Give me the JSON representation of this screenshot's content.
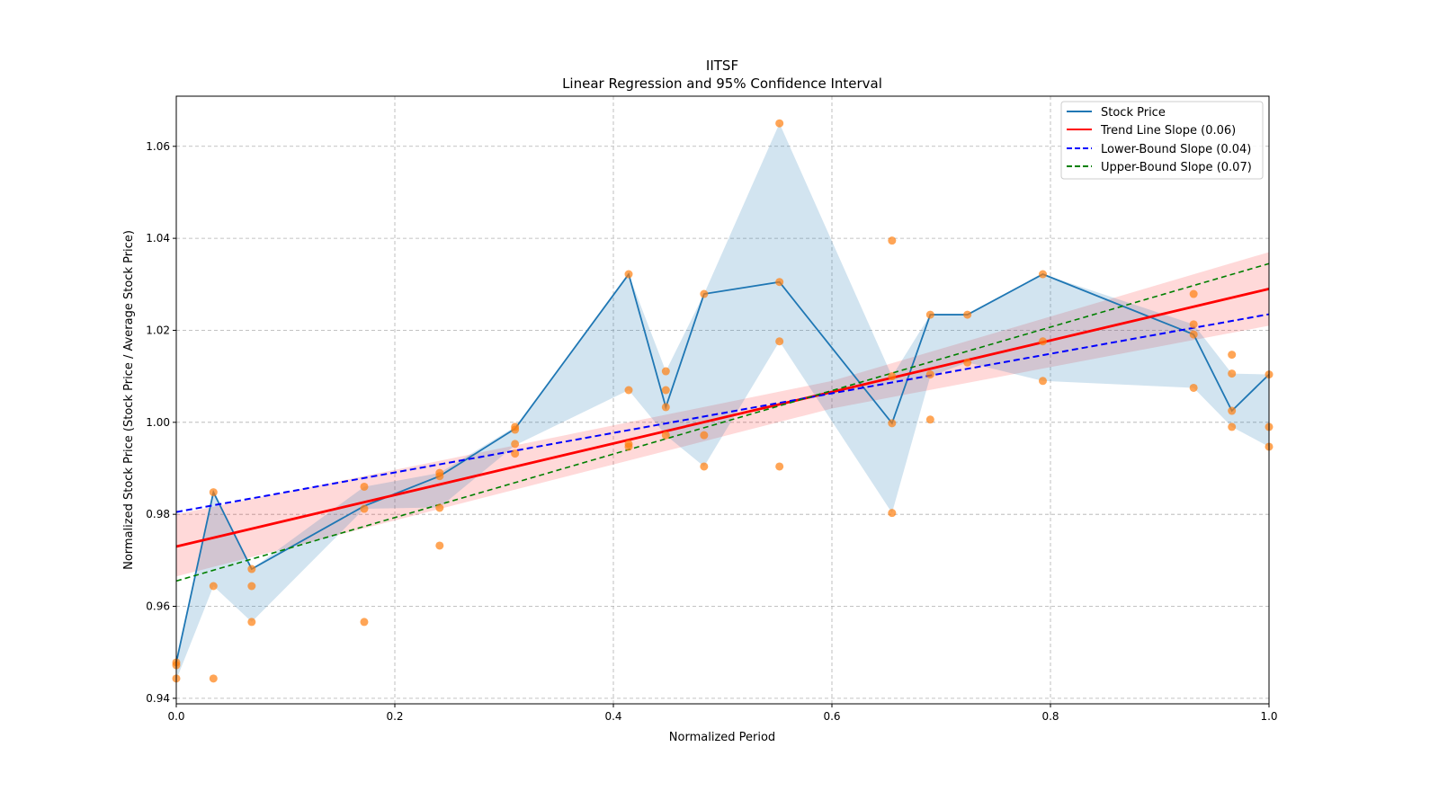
{
  "chart_data": {
    "type": "line",
    "title": "IITSF",
    "subtitle": "Linear Regression and 95% Confidence Interval",
    "xlabel": "Normalized Period",
    "ylabel": "Normalized Stock Price (Stock Price / Average Stock Price)",
    "xlim": [
      0,
      1
    ],
    "ylim": [
      0.9388,
      1.0709
    ],
    "xticks": [
      0,
      0.2,
      0.4,
      0.6,
      0.8,
      1.0
    ],
    "xtick_labels": [
      "0.0",
      "0.2",
      "0.4",
      "0.6",
      "0.8",
      "1.0"
    ],
    "yticks": [
      0.94,
      0.96,
      0.98,
      1.0,
      1.02,
      1.04,
      1.06
    ],
    "ytick_labels": [
      "0.94",
      "0.96",
      "0.98",
      "1.00",
      "1.02",
      "1.04",
      "1.06"
    ],
    "grid": true,
    "legend_position": "top-right",
    "colors": {
      "price": "#1f77b4",
      "band": "#1f77b4",
      "scatter": "#ff7f0e",
      "trend": "#ff0000",
      "lower": "#0000ff",
      "upper": "#008000"
    },
    "legend": [
      "Stock Price",
      "Trend Line Slope (0.06)",
      "Lower-Bound Slope (0.04)",
      "Upper-Bound Slope (0.07)"
    ],
    "stock_price": {
      "x": [
        0,
        0.034,
        0.069,
        0.172,
        0.241,
        0.31,
        0.414,
        0.448,
        0.483,
        0.552,
        0.655,
        0.69,
        0.724,
        0.793,
        0.931,
        0.966,
        1.0
      ],
      "y": [
        0.9478,
        0.9848,
        0.9681,
        0.9818,
        0.9883,
        0.9986,
        1.0322,
        1.0033,
        1.0279,
        1.0305,
        0.9998,
        1.0234,
        1.0234,
        1.0322,
        1.0191,
        1.0025,
        1.0104
      ],
      "band_lower": [
        0.944,
        0.9644,
        0.9566,
        0.9812,
        0.9815,
        0.995,
        1.007,
        0.9972,
        0.9904,
        1.0176,
        0.9803,
        1.01,
        1.013,
        1.009,
        1.0075,
        0.999,
        0.9947
      ],
      "band_upper": [
        0.948,
        0.9848,
        0.9681,
        0.986,
        0.989,
        0.999,
        1.0322,
        1.0111,
        1.0279,
        1.065,
        1.01,
        1.0234,
        1.0234,
        1.0322,
        1.0213,
        1.0106,
        1.0104
      ]
    },
    "scatter": [
      [
        0,
        0.9478
      ],
      [
        0,
        0.9472
      ],
      [
        0,
        0.9443
      ],
      [
        0.034,
        0.9848
      ],
      [
        0.034,
        0.9644
      ],
      [
        0.034,
        0.9443
      ],
      [
        0.069,
        0.9681
      ],
      [
        0.069,
        0.9644
      ],
      [
        0.069,
        0.9566
      ],
      [
        0.172,
        0.986
      ],
      [
        0.172,
        0.9812
      ],
      [
        0.172,
        0.9566
      ],
      [
        0.241,
        0.989
      ],
      [
        0.241,
        0.9883
      ],
      [
        0.241,
        0.9814
      ],
      [
        0.241,
        0.9732
      ],
      [
        0.31,
        0.999
      ],
      [
        0.31,
        0.9984
      ],
      [
        0.31,
        0.9953
      ],
      [
        0.31,
        0.9932
      ],
      [
        0.414,
        1.0322
      ],
      [
        0.414,
        1.007
      ],
      [
        0.414,
        0.9953
      ],
      [
        0.414,
        0.9947
      ],
      [
        0.448,
        1.0111
      ],
      [
        0.448,
        1.007
      ],
      [
        0.448,
        1.0033
      ],
      [
        0.448,
        0.9972
      ],
      [
        0.483,
        1.0279
      ],
      [
        0.483,
        0.9972
      ],
      [
        0.483,
        0.9904
      ],
      [
        0.552,
        1.065
      ],
      [
        0.552,
        1.0305
      ],
      [
        0.552,
        1.0176
      ],
      [
        0.552,
        0.9904
      ],
      [
        0.655,
        1.0395
      ],
      [
        0.655,
        1.01
      ],
      [
        0.655,
        0.9998
      ],
      [
        0.655,
        0.9803
      ],
      [
        0.69,
        1.0234
      ],
      [
        0.69,
        1.0104
      ],
      [
        0.69,
        1.0006
      ],
      [
        0.724,
        1.0234
      ],
      [
        0.724,
        1.013
      ],
      [
        0.793,
        1.0322
      ],
      [
        0.793,
        1.0176
      ],
      [
        0.793,
        1.009
      ],
      [
        0.931,
        1.0279
      ],
      [
        0.931,
        1.0213
      ],
      [
        0.931,
        1.0191
      ],
      [
        0.931,
        1.0075
      ],
      [
        0.966,
        1.0147
      ],
      [
        0.966,
        1.0106
      ],
      [
        0.966,
        1.0025
      ],
      [
        0.966,
        0.999
      ],
      [
        1.0,
        1.0104
      ],
      [
        1.0,
        0.999
      ],
      [
        1.0,
        0.9947
      ]
    ],
    "trend_line": {
      "x": [
        0,
        1
      ],
      "y": [
        0.973,
        1.029
      ],
      "slope": 0.06
    },
    "trend_ci": {
      "x": [
        0,
        0.6,
        1
      ],
      "lower": [
        0.9665,
        1.003,
        1.021
      ],
      "upper": [
        0.98,
        1.009,
        1.037
      ]
    },
    "lower_bound_line": {
      "x": [
        0,
        1
      ],
      "y": [
        0.9805,
        1.0235
      ],
      "slope": 0.04
    },
    "upper_bound_line": {
      "x": [
        0,
        1
      ],
      "y": [
        0.9655,
        1.0345
      ],
      "slope": 0.07
    }
  }
}
